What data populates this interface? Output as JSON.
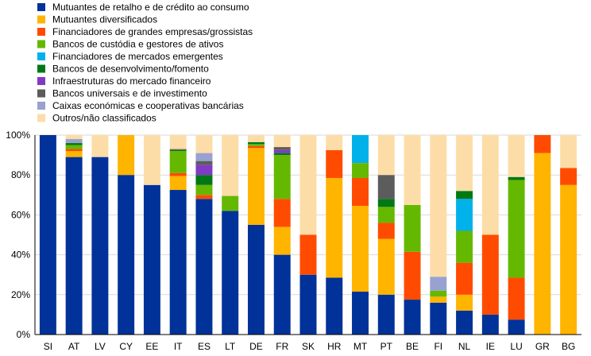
{
  "chart_data": {
    "type": "bar",
    "stacked": true,
    "title": "",
    "xlabel": "",
    "ylabel": "",
    "ylim": [
      0,
      100
    ],
    "y_tick_labels": [
      "0%",
      "20%",
      "40%",
      "60%",
      "80%",
      "100%"
    ],
    "y_ticks": [
      0,
      20,
      40,
      60,
      80,
      100
    ],
    "grid": true,
    "legend_position": "top-left",
    "categories": [
      "SI",
      "AT",
      "LV",
      "CY",
      "EE",
      "IT",
      "ES",
      "LT",
      "DE",
      "FR",
      "SK",
      "HR",
      "MT",
      "PT",
      "BE",
      "FI",
      "NL",
      "IE",
      "LU",
      "GR",
      "BG"
    ],
    "series": [
      {
        "name": "Mutuantes de retalho e de crédito ao consumo",
        "color": "#003299",
        "values": [
          100,
          89,
          89,
          80,
          75,
          72.5,
          68,
          62,
          55,
          40,
          30,
          28.5,
          21.5,
          20,
          17.5,
          16,
          12,
          10,
          7.5,
          0,
          0
        ]
      },
      {
        "name": "Mutuantes diversificados",
        "color": "#FFB400",
        "values": [
          0,
          3,
          0,
          20,
          0,
          7,
          0,
          0,
          38.5,
          14,
          0,
          50,
          43,
          28,
          0,
          3,
          8,
          0,
          0,
          91,
          75
        ]
      },
      {
        "name": "Financiadores de grandes empresas/grossistas",
        "color": "#FF4B00",
        "values": [
          0,
          1,
          0,
          0,
          0,
          1.5,
          2,
          0,
          1,
          14,
          20,
          14,
          14,
          8,
          24,
          0,
          16,
          40,
          21,
          9,
          8.5
        ]
      },
      {
        "name": "Bancos de custódia e gestores de ativos",
        "color": "#65B800",
        "values": [
          0,
          2,
          0,
          0,
          0,
          11,
          5,
          7.5,
          1,
          22,
          0,
          0,
          7.5,
          8,
          23.5,
          3,
          16,
          0,
          49,
          0,
          0
        ]
      },
      {
        "name": "Financiadores de mercados emergentes",
        "color": "#00B1EA",
        "values": [
          0,
          0,
          0,
          0,
          0,
          0,
          0,
          0,
          0,
          0,
          0,
          0,
          14,
          0,
          0,
          0,
          16,
          0,
          0,
          0,
          0
        ]
      },
      {
        "name": "Bancos de desenvolvimento/fomento",
        "color": "#007816",
        "values": [
          0,
          1,
          0,
          0,
          0,
          0.5,
          5,
          0,
          1,
          1,
          0,
          0,
          0,
          4,
          0,
          0,
          4,
          0,
          1.5,
          0,
          0
        ]
      },
      {
        "name": "Infraestruturas do mercado financeiro",
        "color": "#8139C6",
        "values": [
          0,
          0,
          0,
          0,
          0,
          0,
          5,
          0,
          0,
          1.5,
          0,
          0,
          0,
          0,
          0,
          0,
          0,
          0,
          0,
          0,
          0
        ]
      },
      {
        "name": "Bancos universais e de investimento",
        "color": "#5C5C5C",
        "values": [
          0,
          0,
          0,
          0,
          0,
          0.5,
          2,
          0,
          0,
          1.5,
          0,
          0,
          0,
          12,
          0,
          0,
          0,
          0,
          0,
          0,
          0
        ]
      },
      {
        "name": "Caixas económicas e cooperativas bancárias",
        "color": "#98A1D0",
        "values": [
          0,
          2,
          0,
          0,
          0,
          0,
          4,
          0,
          0,
          0,
          0,
          0,
          0,
          0,
          0,
          7,
          0,
          0,
          0,
          0,
          0
        ]
      },
      {
        "name": "Outros/não classificados",
        "color": "#FDDDA7",
        "values": [
          0,
          2,
          11,
          0,
          25,
          7,
          9,
          30.5,
          3.5,
          6,
          50,
          7.5,
          0,
          20,
          35,
          71,
          28,
          50,
          21,
          0,
          16.5
        ]
      }
    ]
  }
}
